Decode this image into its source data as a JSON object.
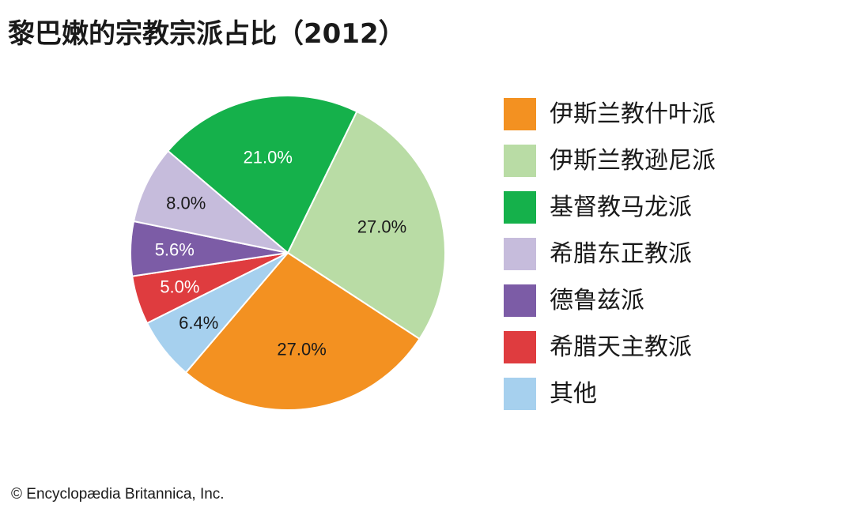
{
  "title": "黎巴嫩的宗教宗派占比（2012）",
  "credit": "© Encyclopædia Britannica, Inc.",
  "chart_data": {
    "type": "pie",
    "title": "黎巴嫩的宗教宗派占比（2012）",
    "unit": "%",
    "start": "12 o'clock, clockwise from 伊斯兰教什叶派 ending at top of 伊斯兰教逊尼派",
    "slices": [
      {
        "name": "伊斯兰教什叶派",
        "value": 27.0,
        "label": "27.0%",
        "color": "#f39121",
        "text_color": "#1a1a1a"
      },
      {
        "name": "伊斯兰教逊尼派",
        "value": 27.0,
        "label": "27.0%",
        "color": "#b9dca5",
        "text_color": "#1a1a1a"
      },
      {
        "name": "基督教马龙派",
        "value": 21.0,
        "label": "21.0%",
        "color": "#15b14b",
        "text_color": "#ffffff"
      },
      {
        "name": "希腊东正教派",
        "value": 8.0,
        "label": "8.0%",
        "color": "#c6bcdc",
        "text_color": "#1a1a1a"
      },
      {
        "name": "德鲁兹派",
        "value": 5.6,
        "label": "5.6%",
        "color": "#7c5ca6",
        "text_color": "#ffffff"
      },
      {
        "name": "希腊天主教派",
        "value": 5.0,
        "label": "5.0%",
        "color": "#df3c3f",
        "text_color": "#ffffff"
      },
      {
        "name": "其他",
        "value": 6.4,
        "label": "6.4%",
        "color": "#a6d0ee",
        "text_color": "#1a1a1a"
      }
    ],
    "legend": {
      "placement": "right",
      "entries": [
        "伊斯兰教什叶派",
        "伊斯兰教逊尼派",
        "基督教马龙派",
        "希腊东正教派",
        "德鲁兹派",
        "希腊天主教派",
        "其他"
      ]
    }
  }
}
